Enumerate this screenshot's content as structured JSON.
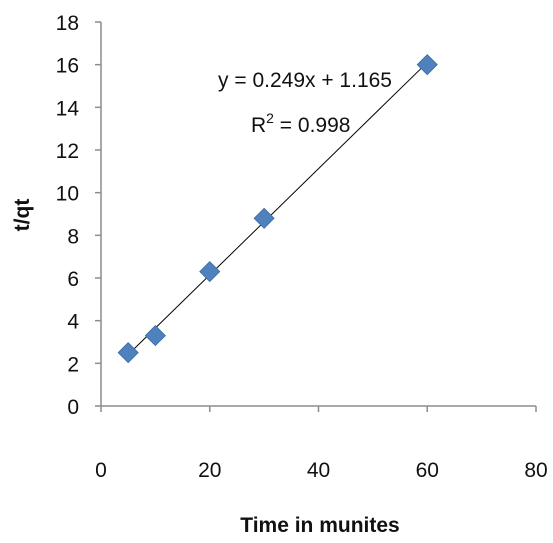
{
  "chart_data": {
    "type": "scatter",
    "title": "",
    "xlabel": "Time in munites",
    "ylabel": "t/qt",
    "xlim": [
      0,
      80
    ],
    "ylim": [
      0,
      18
    ],
    "x_ticks": [
      "0",
      "20",
      "40",
      "60",
      "80"
    ],
    "y_ticks": [
      "0",
      "2",
      "4",
      "6",
      "8",
      "10",
      "12",
      "14",
      "16",
      "18"
    ],
    "grid": false,
    "legend": "none",
    "series": [
      {
        "x": [
          5,
          10,
          20,
          30,
          60
        ],
        "y": [
          2.5,
          3.3,
          6.3,
          8.8,
          16.0
        ],
        "marker": "diamond",
        "color": "#4f81bd"
      }
    ],
    "trendline": {
      "type": "linear",
      "slope": 0.249,
      "intercept": 1.165,
      "x_range": [
        5,
        60
      ],
      "color": "#000000"
    },
    "annotations": {
      "equation": "y = 0.249x + 1.165",
      "r2_prefix": "R",
      "r2_sup": "2",
      "r2_value": " = 0.998"
    }
  }
}
